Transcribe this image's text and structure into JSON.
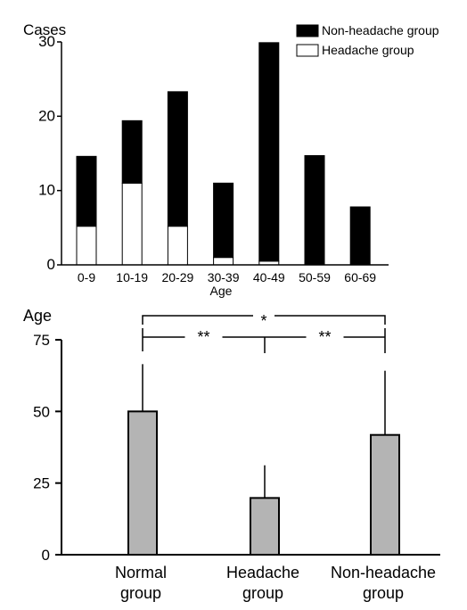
{
  "chart_data": [
    {
      "type": "bar",
      "stacked": true,
      "ylabel": "Cases",
      "xlabel": "Age",
      "ylim": [
        0,
        30
      ],
      "yticks": [
        "0",
        "10",
        "20",
        "30"
      ],
      "categories": [
        "0-9",
        "10-19",
        "20-29",
        "30-39",
        "40-49",
        "50-59",
        "60-69"
      ],
      "series": [
        {
          "name": "Headache group",
          "color": "#ffffff",
          "values": [
            5.2,
            11.0,
            5.2,
            1.0,
            0.5,
            0,
            0
          ]
        },
        {
          "name": "Non-headache group",
          "color": "#000000",
          "values": [
            9.4,
            8.4,
            18.1,
            10.0,
            29.4,
            14.7,
            7.8
          ]
        }
      ],
      "legend": "top-right",
      "grid": false
    },
    {
      "type": "bar",
      "ylabel": "Age",
      "ylim": [
        0,
        75
      ],
      "yticks": [
        "0",
        "25",
        "50",
        "75"
      ],
      "categories": [
        {
          "line1": "Normal",
          "line2": "group"
        },
        {
          "line1": "Headache",
          "line2": "group"
        },
        {
          "line1": "Non-headache",
          "line2": "group"
        }
      ],
      "bar_color": "#b4b4b4",
      "values": [
        50,
        19.8,
        41.8
      ],
      "error_upper": [
        16.5,
        11.4,
        22.4
      ],
      "significance": [
        {
          "label": "*",
          "from": 0,
          "to": 2,
          "level": "top"
        },
        {
          "label": "**",
          "from": 0,
          "to": 1,
          "level": "lower"
        },
        {
          "label": "**",
          "from": 1,
          "to": 2,
          "level": "lower"
        }
      ],
      "grid": false
    }
  ]
}
